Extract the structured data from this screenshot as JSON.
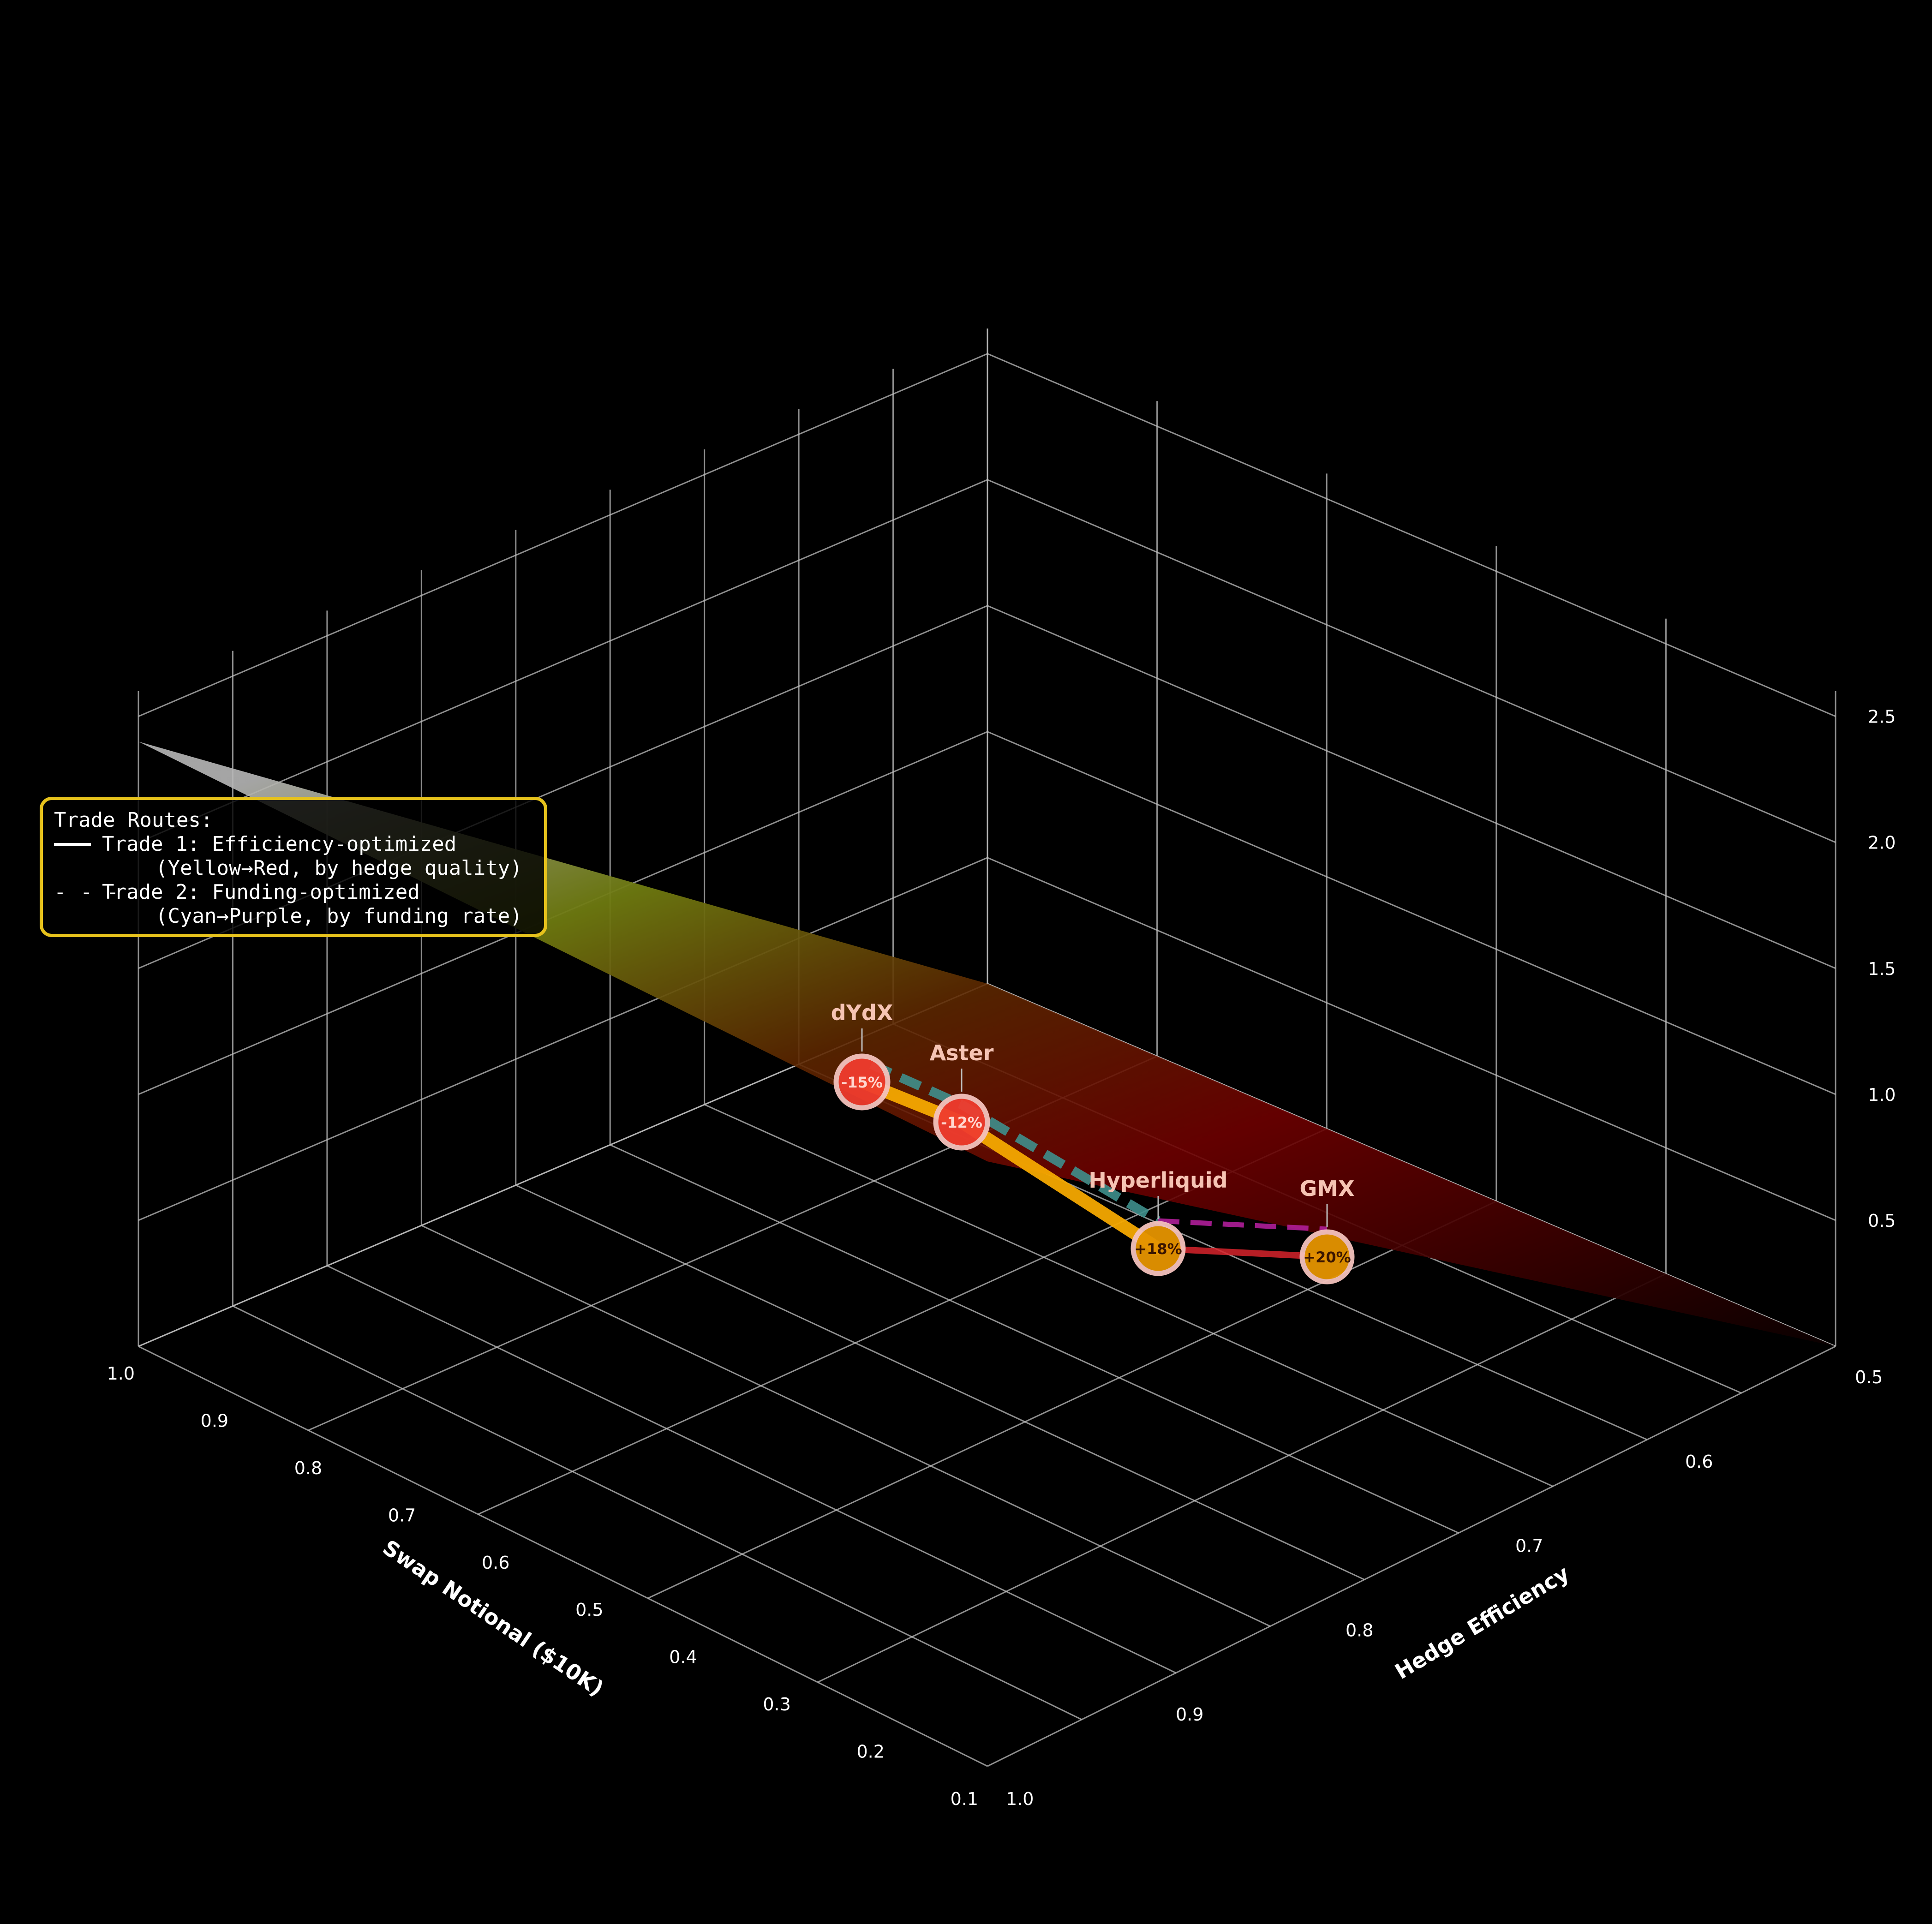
{
  "chart_data": {
    "type": "3d-surface-with-routes",
    "title": "",
    "xlabel": "Swap Notional ($10K)",
    "ylabel": "Hedge Efficiency",
    "zlabel": "",
    "x_ticks": [
      "1.0",
      "0.9",
      "0.8",
      "0.7",
      "0.6",
      "0.5",
      "0.4",
      "0.3",
      "0.2",
      "0.1"
    ],
    "y_ticks": [
      "0.5",
      "0.6",
      "0.7",
      "0.8",
      "0.9",
      "1.0"
    ],
    "z_ticks": [
      "0.5",
      "1.0",
      "1.5",
      "2.0",
      "2.5"
    ],
    "xlim": [
      0.1,
      1.0
    ],
    "ylim": [
      0.5,
      1.0
    ],
    "zlim": [
      0.0,
      2.6
    ],
    "grid": true,
    "surface": {
      "description_colormap": "yellow-to-red by hedge efficiency",
      "corners": [
        {
          "x": 1.0,
          "y": 1.0,
          "z": 2.4
        },
        {
          "x": 0.1,
          "y": 1.0,
          "z": 0.0
        },
        {
          "x": 0.1,
          "y": 0.5,
          "z": 0.0
        },
        {
          "x": 1.0,
          "y": 0.5,
          "z": 2.4
        }
      ]
    },
    "venues": [
      {
        "name": "dYdX",
        "funding_label": "-15%",
        "x": 0.78,
        "y": 0.78,
        "z": 1.0,
        "color": "#f03c2e"
      },
      {
        "name": "Aster",
        "funding_label": "-12%",
        "x": 0.72,
        "y": 0.74,
        "z": 0.9,
        "color": "#f03c2e"
      },
      {
        "name": "Hyperliquid",
        "funding_label": "+18%",
        "x": 0.62,
        "y": 0.66,
        "z": 0.65,
        "color": "#e59400"
      },
      {
        "name": "GMX",
        "funding_label": "+20%",
        "x": 0.58,
        "y": 0.6,
        "z": 0.55,
        "color": "#e59400"
      }
    ],
    "routes": [
      {
        "name": "Trade 1",
        "style": "solid",
        "order": [
          "dYdX",
          "Aster",
          "Hyperliquid",
          "GMX"
        ]
      },
      {
        "name": "Trade 2",
        "style": "dashed",
        "order": [
          "dYdX",
          "Aster",
          "Hyperliquid",
          "GMX"
        ]
      }
    ],
    "legend": {
      "placement": "left",
      "title": "Trade Routes:",
      "entries": [
        {
          "line": "Trade 1: Efficiency-optimized",
          "sub": "(Yellow→Red, by hedge quality)"
        },
        {
          "line": "Trade 2: Funding-optimized",
          "sub": "(Cyan→Purple, by funding rate)"
        }
      ]
    }
  },
  "colors": {
    "background": "#000000",
    "grid": "#bdbdbd",
    "legend_border": "#e6c21c",
    "trade1_start": "#f5a800",
    "trade1_end": "#d8242c",
    "trade2_start": "#3f8f8c",
    "trade2_end": "#b01f9a"
  }
}
